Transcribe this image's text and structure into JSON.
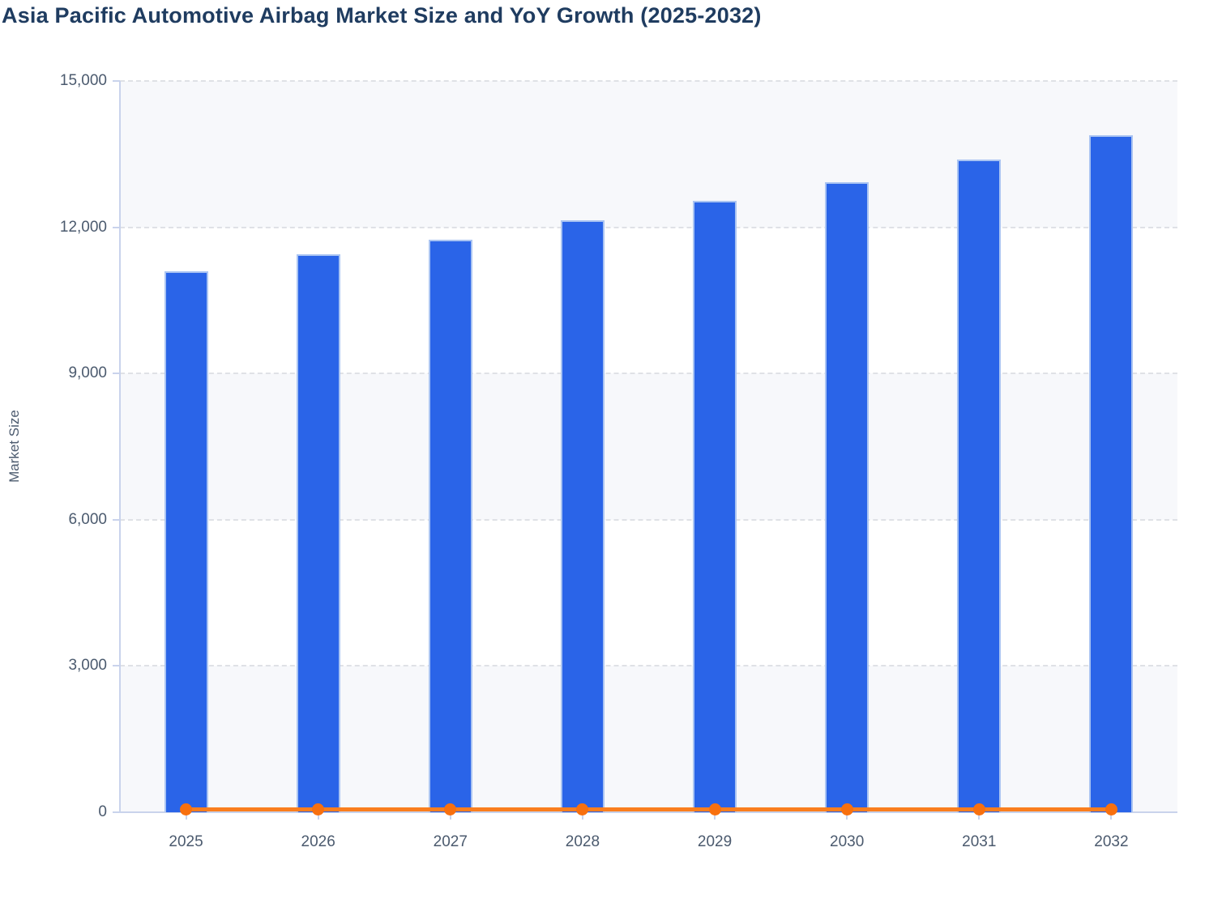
{
  "chart_data": {
    "type": "bar",
    "combo": "bar+line",
    "title": "Asia Pacific Automotive Airbag Market Size and YoY Growth (2025-2032)",
    "ylabel": "Market Size",
    "xlabel": "",
    "categories": [
      "2025",
      "2026",
      "2027",
      "2028",
      "2029",
      "2030",
      "2031",
      "2032"
    ],
    "series": [
      {
        "name": "Market Size",
        "type": "bar",
        "values": [
          11100,
          11450,
          11750,
          12150,
          12550,
          12920,
          13390,
          13890
        ]
      },
      {
        "name": "YoY Growth",
        "type": "line",
        "values": [
          0,
          0,
          0,
          0,
          0,
          0,
          0,
          0
        ],
        "note": "Line with circular markers renders flat along the 0 baseline from 2025 to 2032; YoY percentage values are not labeled and no secondary axis is shown."
      }
    ],
    "y_axis": {
      "min": 0,
      "max": 15000,
      "step": 3000,
      "tick_labels": [
        "0",
        "3,000",
        "6,000",
        "9,000",
        "12,000",
        "15,000"
      ]
    },
    "layout_hints": {
      "grid": "horizontal dashed gridlines at each y tick",
      "background_bands": "alternating light-grey / white horizontal bands, grey band at top",
      "legend": "none visible"
    }
  },
  "colors": {
    "title": "#1f3c60",
    "axis_text": "#4b5a6e",
    "bar": "#2a64e8",
    "bar_edge": "#aac4f2",
    "line": "#fa7e1e",
    "marker": "#f8700f",
    "band": "#f7f8fb",
    "grid": "#dfe1e6",
    "axis_line": "#c9d3ec",
    "background": "#ffffff"
  }
}
